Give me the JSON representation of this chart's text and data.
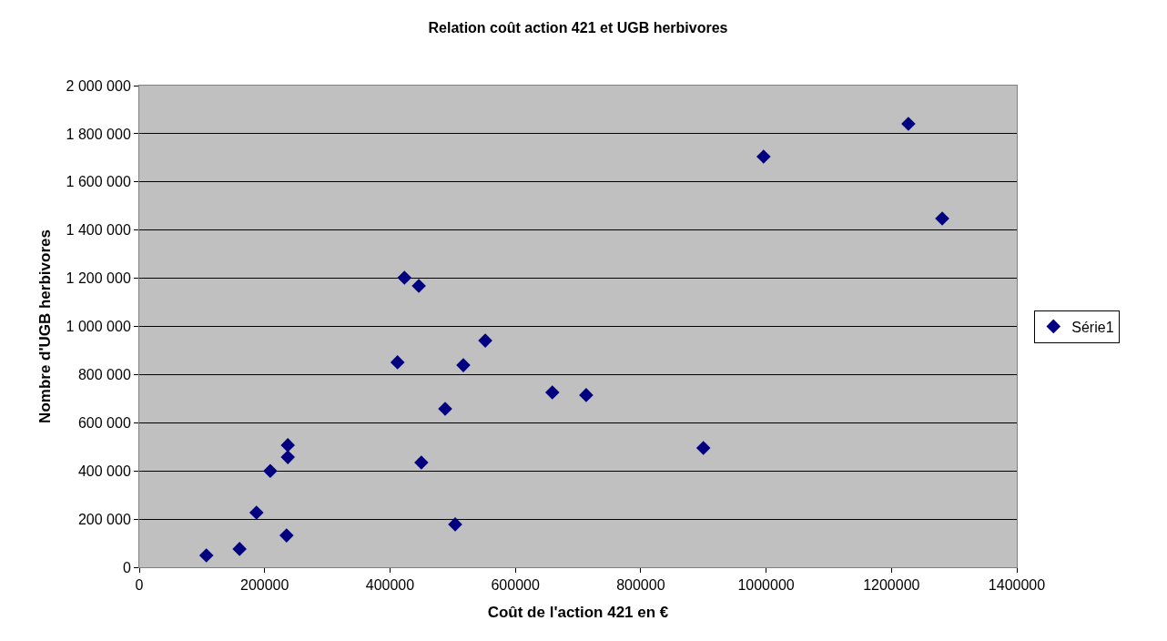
{
  "chart_data": {
    "type": "scatter",
    "title": "Relation coût action 421 et UGB herbivores",
    "xlabel": "Coût de l'action 421 en €",
    "ylabel": "Nombre d'UGB herbivores",
    "x": [
      107000,
      160000,
      187000,
      209000,
      235000,
      237000,
      237000,
      412000,
      423000,
      446000,
      450000,
      488000,
      504000,
      517000,
      552000,
      659000,
      713000,
      900000,
      996000,
      1227000,
      1281000
    ],
    "series": [
      {
        "name": "Série1",
        "color": "#000080",
        "values": [
          49000,
          76000,
          227000,
          400000,
          132000,
          457000,
          507000,
          851000,
          1202000,
          1168000,
          435000,
          658000,
          178000,
          839000,
          941000,
          726000,
          715000,
          495000,
          1705000,
          1841000,
          1448000
        ]
      }
    ],
    "xlim": [
      0,
      1400000
    ],
    "xticks": [
      0,
      200000,
      400000,
      600000,
      800000,
      1000000,
      1200000,
      1400000
    ],
    "ylim": [
      0,
      2000000
    ],
    "yticks": [
      {
        "value": 0,
        "label": "0"
      },
      {
        "value": 200000,
        "label": "200 000"
      },
      {
        "value": 400000,
        "label": "400 000"
      },
      {
        "value": 600000,
        "label": "600 000"
      },
      {
        "value": 800000,
        "label": "800 000"
      },
      {
        "value": 1000000,
        "label": "1 000 000"
      },
      {
        "value": 1200000,
        "label": "1 200 000"
      },
      {
        "value": 1400000,
        "label": "1 400 000"
      },
      {
        "value": 1600000,
        "label": "1 600 000"
      },
      {
        "value": 1800000,
        "label": "1 800 000"
      },
      {
        "value": 2000000,
        "label": "2 000 000"
      }
    ],
    "grid": "y",
    "legend": "right",
    "marker": "diamond"
  }
}
